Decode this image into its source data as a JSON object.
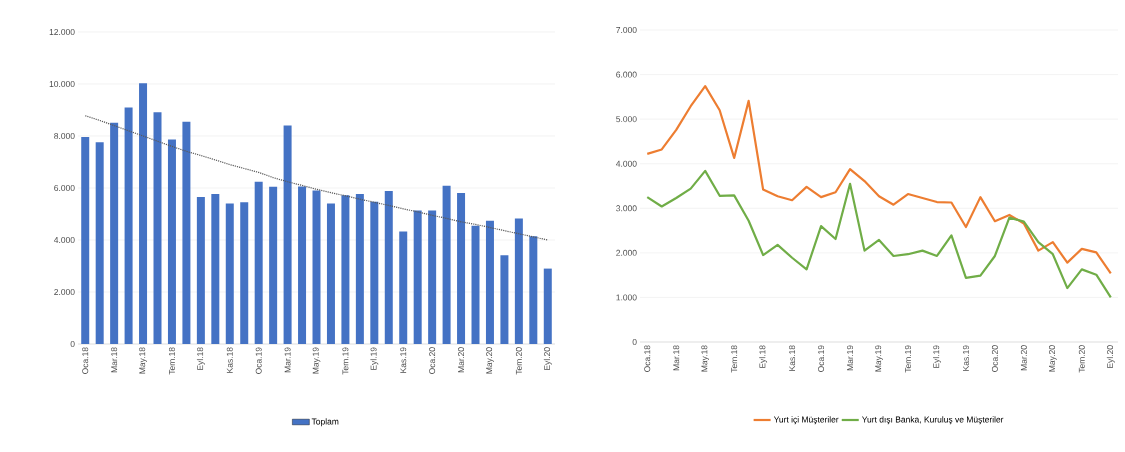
{
  "chart_data": [
    {
      "type": "bar",
      "categories": [
        "Oca.18",
        null,
        "Mar.18",
        null,
        "May.18",
        null,
        "Tem.18",
        null,
        "Eyl.18",
        null,
        "Kas.18",
        null,
        "Oca.19",
        null,
        "Mar.19",
        null,
        "May.19",
        null,
        "Tem.19",
        null,
        "Eyl.19",
        null,
        "Kas.19",
        null,
        "Oca.20",
        null,
        "Mar.20",
        null,
        "May.20",
        null,
        "Tem.20",
        null,
        "Eyl.20"
      ],
      "series": [
        {
          "name": "Toplam",
          "color": "#4472c4",
          "values": [
            7960,
            7760,
            8510,
            9100,
            10030,
            8910,
            7870,
            8550,
            5650,
            5770,
            5400,
            5450,
            6240,
            6050,
            8400,
            6060,
            5900,
            5400,
            5720,
            5770,
            5470,
            5880,
            4330,
            5130,
            5130,
            6090,
            5810,
            4550,
            4740,
            3410,
            4830,
            4140,
            2900
          ]
        },
        {
          "type": "line",
          "color": "#595959",
          "line_style": "dotted",
          "values": [
            8780,
            8600,
            8400,
            8200,
            8000,
            7800,
            7600,
            7410,
            7250,
            7080,
            6900,
            6750,
            6600,
            6400,
            6240,
            6100,
            5950,
            5820,
            5700,
            5570,
            5450,
            5330,
            5200,
            5080,
            4950,
            4830,
            4700,
            4600,
            4480,
            4360,
            4240,
            4120,
            4000
          ]
        }
      ],
      "ylim": [
        0,
        12000
      ],
      "yticks": [
        0,
        {
          "value": 2000,
          "label": "2.000"
        },
        {
          "value": 4000,
          "label": "4.000"
        },
        {
          "value": 6000,
          "label": "6.000"
        },
        {
          "value": 8000,
          "label": "8.000"
        },
        {
          "value": 10000,
          "label": "10.000"
        },
        {
          "value": 12000,
          "label": "12.000"
        }
      ],
      "grid": "y",
      "legend": "bottom"
    },
    {
      "type": "line",
      "categories": [
        "Oca.18",
        null,
        "Mar.18",
        null,
        "May.18",
        null,
        "Tem.18",
        null,
        "Eyl.18",
        null,
        "Kas.18",
        null,
        "Oca.19",
        null,
        "Mar.19",
        null,
        "May.19",
        null,
        "Tem.19",
        null,
        "Eyl.19",
        null,
        "Kas.19",
        null,
        "Oca.20",
        null,
        "Mar.20",
        null,
        "May.20",
        null,
        "Tem.20",
        null,
        "Eyl.20"
      ],
      "series": [
        {
          "name": "Yurt içi Müşteriler",
          "color": "#ed7d31",
          "values": [
            4220,
            4320,
            4760,
            5290,
            5740,
            5200,
            4130,
            5410,
            3420,
            3270,
            3180,
            3480,
            3250,
            3360,
            3880,
            3610,
            3270,
            3080,
            3320,
            3230,
            3140,
            3130,
            2580,
            3250,
            2710,
            2850,
            2660,
            2050,
            2240,
            1780,
            2090,
            2010,
            1540
          ]
        },
        {
          "name": "Yurt dışı Banka, Kuruluş ve Müşteriler",
          "color": "#70ad47",
          "values": [
            3250,
            3040,
            3230,
            3440,
            3840,
            3280,
            3290,
            2720,
            1950,
            2180,
            1890,
            1630,
            2600,
            2310,
            3550,
            2050,
            2290,
            1930,
            1970,
            2050,
            1930,
            2390,
            1440,
            1490,
            1930,
            2790,
            2700,
            2240,
            1970,
            1210,
            1630,
            1510,
            1000
          ]
        }
      ],
      "ylim": [
        0,
        7000
      ],
      "yticks": [
        0,
        {
          "value": 1000,
          "label": "1.000"
        },
        {
          "value": 2000,
          "label": "2.000"
        },
        {
          "value": 3000,
          "label": "3.000"
        },
        {
          "value": 4000,
          "label": "4.000"
        },
        {
          "value": 5000,
          "label": "5.000"
        },
        {
          "value": 6000,
          "label": "6.000"
        },
        {
          "value": 7000,
          "label": "7.000"
        }
      ],
      "grid": "y",
      "legend": "bottom"
    }
  ]
}
